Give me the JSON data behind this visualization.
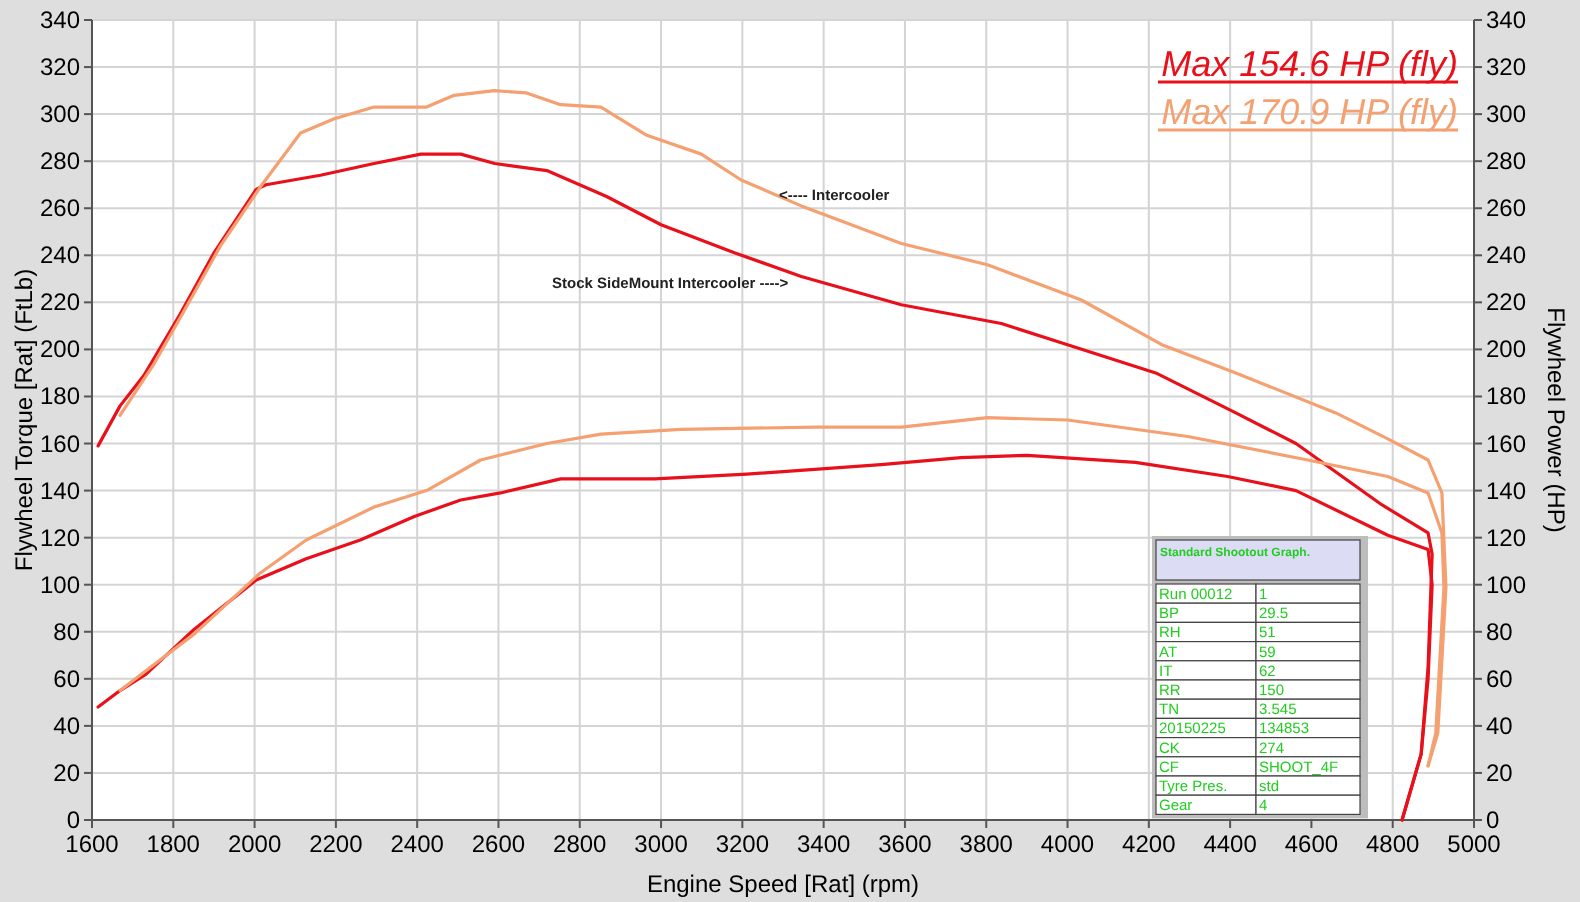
{
  "chart_data": {
    "type": "line",
    "xlabel": "Engine Speed [Rat] (rpm)",
    "ylabel": "Flywheel Torque [Rat] (FtLb)",
    "y2label": "Flywheel Power (HP)",
    "xlim": [
      1600,
      5000
    ],
    "xticks": [
      1600,
      1800,
      2000,
      2200,
      2400,
      2600,
      2800,
      3000,
      3200,
      3400,
      3600,
      3800,
      4000,
      4200,
      4400,
      4600,
      4800,
      5000
    ],
    "ylim": [
      0,
      340
    ],
    "yticks": [
      0,
      20,
      40,
      60,
      80,
      100,
      120,
      140,
      160,
      180,
      200,
      220,
      240,
      260,
      280,
      300,
      320,
      340
    ],
    "y2lim": [
      0,
      340
    ],
    "y2ticks": [
      0,
      20,
      40,
      60,
      80,
      100,
      120,
      140,
      160,
      180,
      200,
      220,
      240,
      260,
      280,
      300,
      320,
      340
    ],
    "grid": true,
    "legend": "top right",
    "marker": "none",
    "line_style": "solid",
    "series": [
      {
        "color": "#e8101a",
        "x": [
          1615,
          1669,
          1728,
          1817,
          1900,
          2004,
          2028,
          2162,
          2294,
          2409,
          2507,
          2591,
          2719,
          2866,
          3000,
          3182,
          3345,
          3591,
          3837,
          4000,
          4217,
          4414,
          4562,
          4773,
          4887,
          4897,
          4887,
          4870,
          4823
        ],
        "values": [
          159,
          176,
          189,
          215,
          241,
          268,
          270,
          274,
          279,
          283,
          283,
          279,
          276,
          265,
          253,
          241,
          231,
          219,
          211,
          202,
          190,
          173,
          160,
          134,
          122,
          113,
          65,
          28,
          0
        ]
      },
      {
        "color": "#f5a071",
        "x": [
          1669,
          1753,
          1832,
          1916,
          2014,
          2113,
          2196,
          2294,
          2423,
          2491,
          2590,
          2669,
          2753,
          2852,
          2965,
          3099,
          3197,
          3345,
          3591,
          3803,
          4034,
          4232,
          4414,
          4660,
          4788,
          4887,
          4921,
          4931,
          4911,
          4887
        ],
        "values": [
          172,
          194,
          218,
          244,
          269,
          292,
          298,
          303,
          303,
          308,
          310,
          309,
          304,
          303,
          291,
          283,
          272,
          261,
          245,
          236,
          221,
          202,
          190,
          173,
          162,
          153,
          139,
          99,
          37,
          23
        ]
      },
      {
        "name": "Max 154.6 HP (fly)",
        "color": "#e8101a",
        "x": [
          1615,
          1669,
          1733,
          1851,
          2004,
          2127,
          2260,
          2393,
          2507,
          2605,
          2753,
          2984,
          3211,
          3541,
          3738,
          3901,
          4167,
          4394,
          4562,
          4788,
          4887,
          4897,
          4887,
          4870,
          4823
        ],
        "values": [
          48,
          55,
          62,
          81,
          102,
          111,
          119,
          129,
          136,
          139,
          145,
          145,
          147,
          151,
          154,
          155,
          152,
          146,
          140,
          121,
          115,
          100,
          60,
          28,
          0
        ]
      },
      {
        "name": "Max 170.9 HP (fly)",
        "color": "#f5a071",
        "x": [
          1669,
          1851,
          2014,
          2127,
          2294,
          2423,
          2556,
          2719,
          2852,
          3049,
          3379,
          3591,
          3803,
          4000,
          4296,
          4591,
          4788,
          4887,
          4921,
          4926,
          4906,
          4887
        ],
        "values": [
          55,
          79,
          105,
          119,
          133,
          140,
          153,
          160,
          164,
          166,
          167,
          167,
          171,
          170,
          163,
          153,
          146,
          139,
          122,
          99,
          37,
          23
        ]
      }
    ],
    "annotations": [
      {
        "text": "<----  Intercooler",
        "x": 3290,
        "y": 266
      },
      "Stock SideMount Intercooler  ---->",
      "Standard Shootout Graph.",
      "Run 00012",
      "1",
      "BP",
      "29.5",
      "RH",
      "51",
      "AT",
      "59",
      "IT",
      "62",
      "RR",
      "150",
      "TN",
      "3.545",
      "20150225",
      "134853",
      "CK",
      "274",
      "CF",
      "SHOOT_4F",
      "Tyre Pres.",
      "std",
      "Gear",
      "4"
    ]
  }
}
